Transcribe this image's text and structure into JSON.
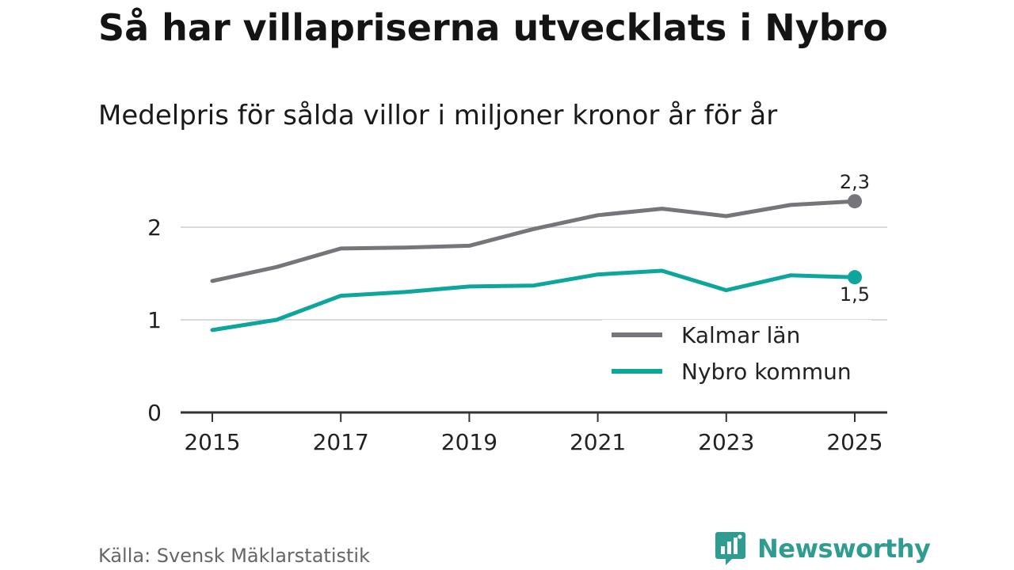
{
  "header": {
    "title": "Så har villapriserna utvecklats i Nybro",
    "subtitle": "Medelpris för sålda villor i miljoner kronor år för år"
  },
  "footer": {
    "source": "Källa: Svensk Mäklarstatistik",
    "brand": "Newsworthy"
  },
  "colors": {
    "kalmar": "#75757a",
    "nybro": "#0ea69c",
    "grid": "#d9d9d9",
    "axis": "#333333"
  },
  "chart_data": {
    "type": "line",
    "title": "Så har villapriserna utvecklats i Nybro",
    "subtitle": "Medelpris för sålda villor i miljoner kronor år för år",
    "xlabel": "",
    "ylabel": "",
    "x": [
      2015,
      2016,
      2017,
      2018,
      2019,
      2020,
      2021,
      2022,
      2023,
      2024,
      2025
    ],
    "xticks": [
      "2015",
      "2017",
      "2019",
      "2021",
      "2023",
      "2025"
    ],
    "yticks": [
      "0",
      "1",
      "2"
    ],
    "ylim": [
      0,
      2.5
    ],
    "grid": true,
    "legend_position": "bottom-right",
    "series": [
      {
        "name": "Kalmar län",
        "color": "#75757a",
        "values": [
          1.42,
          1.57,
          1.77,
          1.78,
          1.8,
          1.98,
          2.13,
          2.2,
          2.12,
          2.24,
          2.28
        ],
        "end_label": "2,3"
      },
      {
        "name": "Nybro kommun",
        "color": "#0ea69c",
        "values": [
          0.89,
          1.0,
          1.26,
          1.3,
          1.36,
          1.37,
          1.49,
          1.53,
          1.32,
          1.48,
          1.46
        ],
        "end_label": "1,5"
      }
    ]
  }
}
